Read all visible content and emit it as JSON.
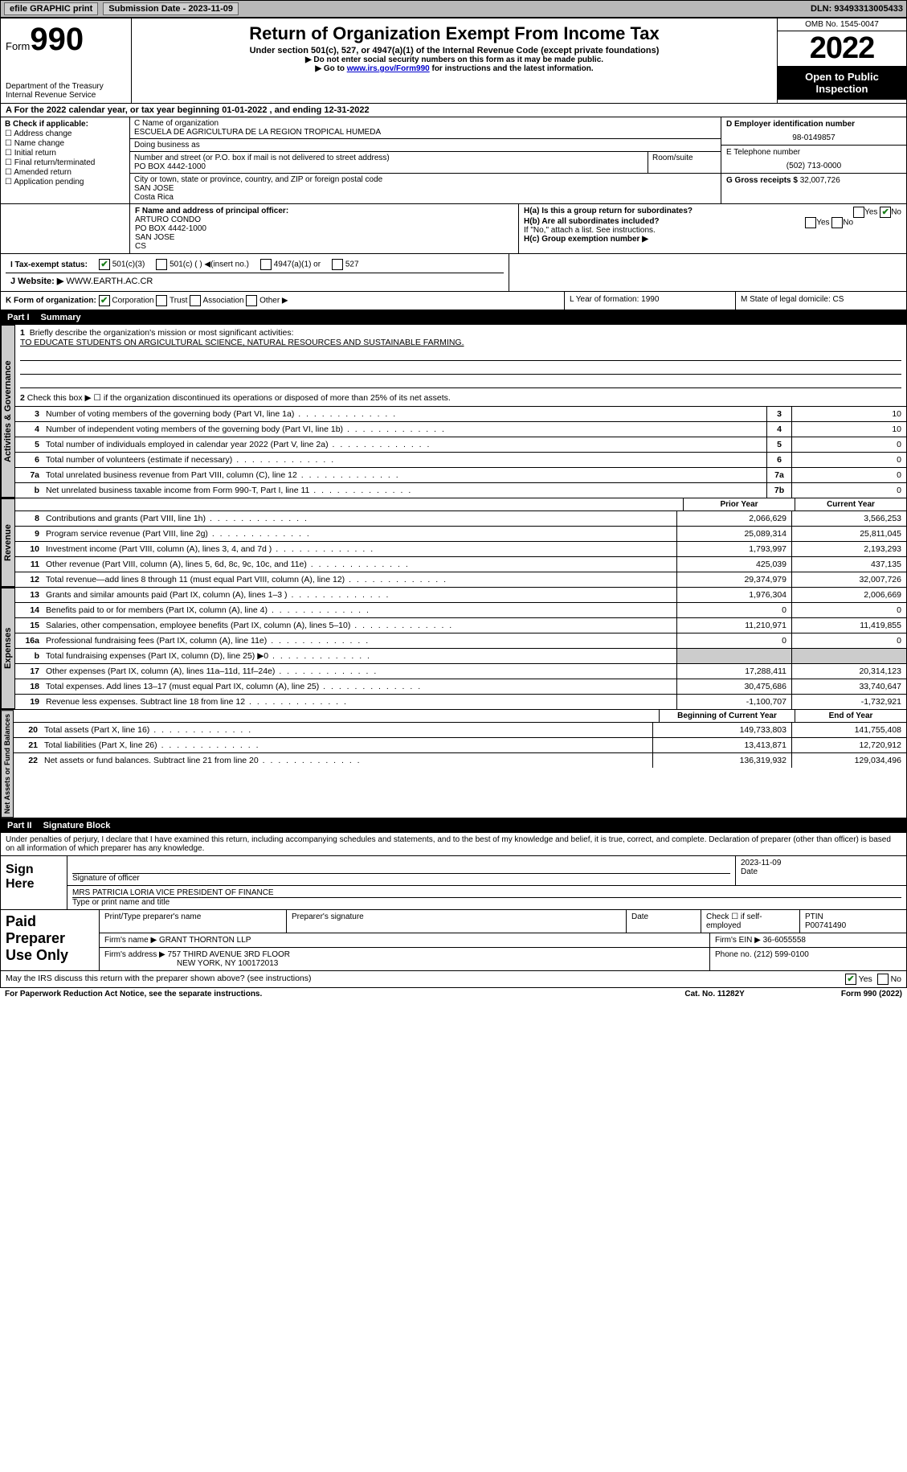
{
  "topbar": {
    "efile": "efile GRAPHIC print",
    "submission": "Submission Date - 2023-11-09",
    "dln": "DLN: 93493313005433"
  },
  "header": {
    "form_label": "Form",
    "form_no": "990",
    "dept": "Department of the Treasury",
    "irs": "Internal Revenue Service",
    "title": "Return of Organization Exempt From Income Tax",
    "sub1": "Under section 501(c), 527, or 4947(a)(1) of the Internal Revenue Code (except private foundations)",
    "sub2": "▶ Do not enter social security numbers on this form as it may be made public.",
    "sub3": "▶ Go to www.irs.gov/Form990 for instructions and the latest information.",
    "link": "www.irs.gov/Form990",
    "omb": "OMB No. 1545-0047",
    "year": "2022",
    "open": "Open to Public Inspection"
  },
  "row_a": "A For the 2022 calendar year, or tax year beginning 01-01-2022    , and ending 12-31-2022",
  "col_b": {
    "hdr": "B Check if applicable:",
    "items": [
      "Address change",
      "Name change",
      "Initial return",
      "Final return/terminated",
      "Amended return",
      "Application pending"
    ]
  },
  "col_c": {
    "name_lbl": "C Name of organization",
    "name": "ESCUELA DE AGRICULTURA DE LA REGION TROPICAL HUMEDA",
    "dba_lbl": "Doing business as",
    "addr_lbl": "Number and street (or P.O. box if mail is not delivered to street address)",
    "room_lbl": "Room/suite",
    "addr": "PO BOX 4442-1000",
    "city_lbl": "City or town, state or province, country, and ZIP or foreign postal code",
    "city": "SAN JOSE",
    "country": "Costa Rica"
  },
  "col_d": {
    "ein_lbl": "D Employer identification number",
    "ein": "98-0149857",
    "tel_lbl": "E Telephone number",
    "tel": "(502) 713-0000",
    "gross_lbl": "G Gross receipts $",
    "gross": "32,007,726"
  },
  "row_f": {
    "f_lbl": "F  Name and address of principal officer:",
    "name": "ARTURO CONDO",
    "addr": "PO BOX 4442-1000",
    "city": "SAN JOSE",
    "cs": "CS"
  },
  "row_h": {
    "ha": "H(a)  Is this a group return for subordinates?",
    "hb": "H(b)  Are all subordinates included?",
    "hb2": "If \"No,\" attach a list. See instructions.",
    "hc": "H(c)  Group exemption number ▶",
    "yes": "Yes",
    "no": "No"
  },
  "row_i": {
    "lbl": "I   Tax-exempt status:",
    "o1": "501(c)(3)",
    "o2": "501(c) (  ) ◀(insert no.)",
    "o3": "4947(a)(1) or",
    "o4": "527"
  },
  "row_j": {
    "lbl": "J   Website: ▶",
    "val": "WWW.EARTH.AC.CR"
  },
  "row_k": {
    "k": "K Form of organization:",
    "corp": "Corporation",
    "trust": "Trust",
    "assoc": "Association",
    "other": "Other ▶",
    "l": "L Year of formation: 1990",
    "m": "M State of legal domicile: CS"
  },
  "part1": {
    "num": "Part I",
    "title": "Summary"
  },
  "mission": {
    "line1_num": "1",
    "line1": "Briefly describe the organization's mission or most significant activities:",
    "text": "TO EDUCATE STUDENTS ON ARGICULTURAL SCIENCE, NATURAL RESOURCES AND SUSTAINABLE FARMING.",
    "line2_num": "2",
    "line2": "Check this box ▶ ☐  if the organization discontinued its operations or disposed of more than 25% of its net assets."
  },
  "sections": {
    "gov": "Activities & Governance",
    "rev": "Revenue",
    "exp": "Expenses",
    "net": "Net Assets or Fund Balances"
  },
  "gov_lines": [
    {
      "n": "3",
      "d": "Number of voting members of the governing body (Part VI, line 1a)",
      "box": "3",
      "v": "10"
    },
    {
      "n": "4",
      "d": "Number of independent voting members of the governing body (Part VI, line 1b)",
      "box": "4",
      "v": "10"
    },
    {
      "n": "5",
      "d": "Total number of individuals employed in calendar year 2022 (Part V, line 2a)",
      "box": "5",
      "v": "0"
    },
    {
      "n": "6",
      "d": "Total number of volunteers (estimate if necessary)",
      "box": "6",
      "v": "0"
    },
    {
      "n": "7a",
      "d": "Total unrelated business revenue from Part VIII, column (C), line 12",
      "box": "7a",
      "v": "0"
    },
    {
      "n": "b",
      "d": "Net unrelated business taxable income from Form 990-T, Part I, line 11",
      "box": "7b",
      "v": "0"
    }
  ],
  "col_hdrs": {
    "prior": "Prior Year",
    "current": "Current Year"
  },
  "rev_lines": [
    {
      "n": "8",
      "d": "Contributions and grants (Part VIII, line 1h)",
      "p": "2,066,629",
      "c": "3,566,253"
    },
    {
      "n": "9",
      "d": "Program service revenue (Part VIII, line 2g)",
      "p": "25,089,314",
      "c": "25,811,045"
    },
    {
      "n": "10",
      "d": "Investment income (Part VIII, column (A), lines 3, 4, and 7d )",
      "p": "1,793,997",
      "c": "2,193,293"
    },
    {
      "n": "11",
      "d": "Other revenue (Part VIII, column (A), lines 5, 6d, 8c, 9c, 10c, and 11e)",
      "p": "425,039",
      "c": "437,135"
    },
    {
      "n": "12",
      "d": "Total revenue—add lines 8 through 11 (must equal Part VIII, column (A), line 12)",
      "p": "29,374,979",
      "c": "32,007,726"
    }
  ],
  "exp_lines": [
    {
      "n": "13",
      "d": "Grants and similar amounts paid (Part IX, column (A), lines 1–3 )",
      "p": "1,976,304",
      "c": "2,006,669"
    },
    {
      "n": "14",
      "d": "Benefits paid to or for members (Part IX, column (A), line 4)",
      "p": "0",
      "c": "0"
    },
    {
      "n": "15",
      "d": "Salaries, other compensation, employee benefits (Part IX, column (A), lines 5–10)",
      "p": "11,210,971",
      "c": "11,419,855"
    },
    {
      "n": "16a",
      "d": "Professional fundraising fees (Part IX, column (A), line 11e)",
      "p": "0",
      "c": "0"
    },
    {
      "n": "b",
      "d": "Total fundraising expenses (Part IX, column (D), line 25) ▶0",
      "p": "",
      "c": "",
      "shade": true
    },
    {
      "n": "17",
      "d": "Other expenses (Part IX, column (A), lines 11a–11d, 11f–24e)",
      "p": "17,288,411",
      "c": "20,314,123"
    },
    {
      "n": "18",
      "d": "Total expenses. Add lines 13–17 (must equal Part IX, column (A), line 25)",
      "p": "30,475,686",
      "c": "33,740,647"
    },
    {
      "n": "19",
      "d": "Revenue less expenses. Subtract line 18 from line 12",
      "p": "-1,100,707",
      "c": "-1,732,921"
    }
  ],
  "net_hdrs": {
    "beg": "Beginning of Current Year",
    "end": "End of Year"
  },
  "net_lines": [
    {
      "n": "20",
      "d": "Total assets (Part X, line 16)",
      "p": "149,733,803",
      "c": "141,755,408"
    },
    {
      "n": "21",
      "d": "Total liabilities (Part X, line 26)",
      "p": "13,413,871",
      "c": "12,720,912"
    },
    {
      "n": "22",
      "d": "Net assets or fund balances. Subtract line 21 from line 20",
      "p": "136,319,932",
      "c": "129,034,496"
    }
  ],
  "part2": {
    "num": "Part II",
    "title": "Signature Block"
  },
  "penalty": "Under penalties of perjury, I declare that I have examined this return, including accompanying schedules and statements, and to the best of my knowledge and belief, it is true, correct, and complete. Declaration of preparer (other than officer) is based on all information of which preparer has any knowledge.",
  "sign": {
    "here": "Sign Here",
    "sig_lbl": "Signature of officer",
    "date_lbl": "Date",
    "date": "2023-11-09",
    "name": "MRS PATRICIA LORIA  VICE PRESIDENT OF FINANCE",
    "name_lbl": "Type or print name and title"
  },
  "ppu": {
    "title": "Paid Preparer Use Only",
    "r1": {
      "a": "Print/Type preparer's name",
      "b": "Preparer's signature",
      "c": "Date",
      "d": "Check ☐ if self-employed",
      "e": "PTIN",
      "ev": "P00741490"
    },
    "r2": {
      "a": "Firm's name    ▶",
      "av": "GRANT THORNTON LLP",
      "b": "Firm's EIN ▶",
      "bv": "36-6055558"
    },
    "r3": {
      "a": "Firm's address ▶",
      "av": "757 THIRD AVENUE 3RD FLOOR",
      "av2": "NEW YORK, NY  100172013",
      "b": "Phone no.",
      "bv": "(212) 599-0100"
    }
  },
  "may": "May the IRS discuss this return with the preparer shown above? (see instructions)",
  "footer": {
    "l": "For Paperwork Reduction Act Notice, see the separate instructions.",
    "m": "Cat. No. 11282Y",
    "r": "Form 990 (2022)"
  }
}
